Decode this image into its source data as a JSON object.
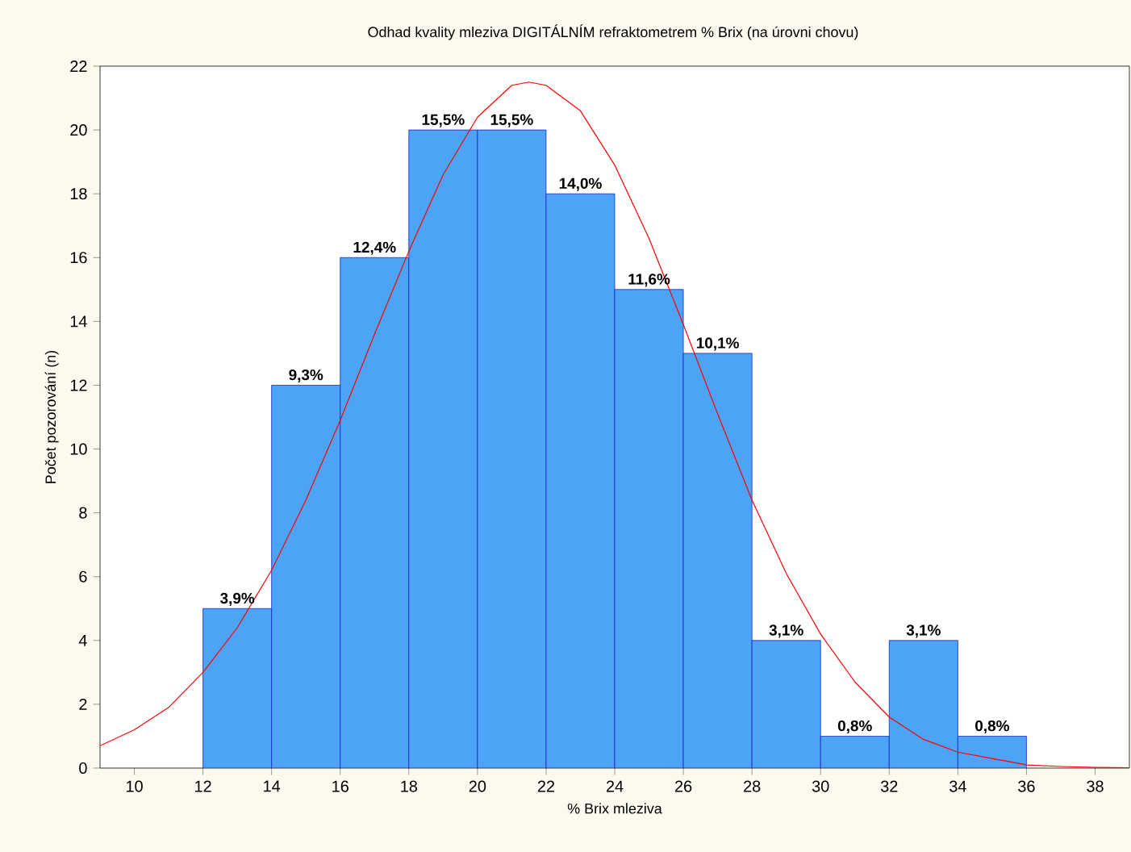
{
  "chart_data": {
    "type": "histogram",
    "title": "Odhad kvality mleziva DIGITÁLNÍM refraktometrem % Brix (na úrovni chovu)",
    "xlabel": "% Brix mleziva",
    "ylabel": "Počet pozorování (n)",
    "bins": [
      12,
      14,
      16,
      18,
      20,
      22,
      24,
      26,
      28,
      30,
      32,
      34,
      36
    ],
    "series": [
      {
        "color": "#4da3f5",
        "values": [
          5,
          12,
          16,
          20,
          20,
          18,
          15,
          13,
          4,
          1,
          4,
          1
        ]
      },
      {
        "type": "line",
        "color": "#ff0000",
        "x": [
          9,
          10,
          11,
          12,
          13,
          14,
          15,
          16,
          17,
          18,
          19,
          20,
          21,
          21.5,
          22,
          23,
          24,
          25,
          26,
          27,
          28,
          29,
          30,
          31,
          32,
          33,
          34,
          35,
          36,
          37,
          38,
          39
        ],
        "values": [
          0.7,
          1.2,
          1.9,
          3.0,
          4.4,
          6.2,
          8.4,
          10.9,
          13.6,
          16.2,
          18.6,
          20.4,
          21.4,
          21.5,
          21.4,
          20.6,
          18.9,
          16.6,
          13.9,
          11.1,
          8.4,
          6.1,
          4.2,
          2.7,
          1.6,
          0.9,
          0.5,
          0.3,
          0.1,
          0.05,
          0.02,
          0.01
        ]
      }
    ],
    "annotations": [
      {
        "text": "3,9%",
        "x": 13,
        "y": 5
      },
      {
        "text": "9,3%",
        "x": 15,
        "y": 12
      },
      {
        "text": "12,4%",
        "x": 17,
        "y": 16
      },
      {
        "text": "15,5%",
        "x": 19,
        "y": 20
      },
      {
        "text": "15,5%",
        "x": 21,
        "y": 20
      },
      {
        "text": "14,0%",
        "x": 23,
        "y": 18
      },
      {
        "text": "11,6%",
        "x": 25,
        "y": 15
      },
      {
        "text": "10,1%",
        "x": 27,
        "y": 13
      },
      {
        "text": "3,1%",
        "x": 29,
        "y": 4
      },
      {
        "text": "0,8%",
        "x": 31,
        "y": 1
      },
      {
        "text": "3,1%",
        "x": 33,
        "y": 4
      },
      {
        "text": "0,8%",
        "x": 35,
        "y": 1
      }
    ],
    "xlim": [
      9,
      39
    ],
    "ylim": [
      0,
      22
    ],
    "xticks": [
      10,
      12,
      14,
      16,
      18,
      20,
      22,
      24,
      26,
      28,
      30,
      32,
      34,
      36,
      38
    ],
    "yticks": [
      0,
      2,
      4,
      6,
      8,
      10,
      12,
      14,
      16,
      18,
      20,
      22
    ],
    "grid": false
  }
}
